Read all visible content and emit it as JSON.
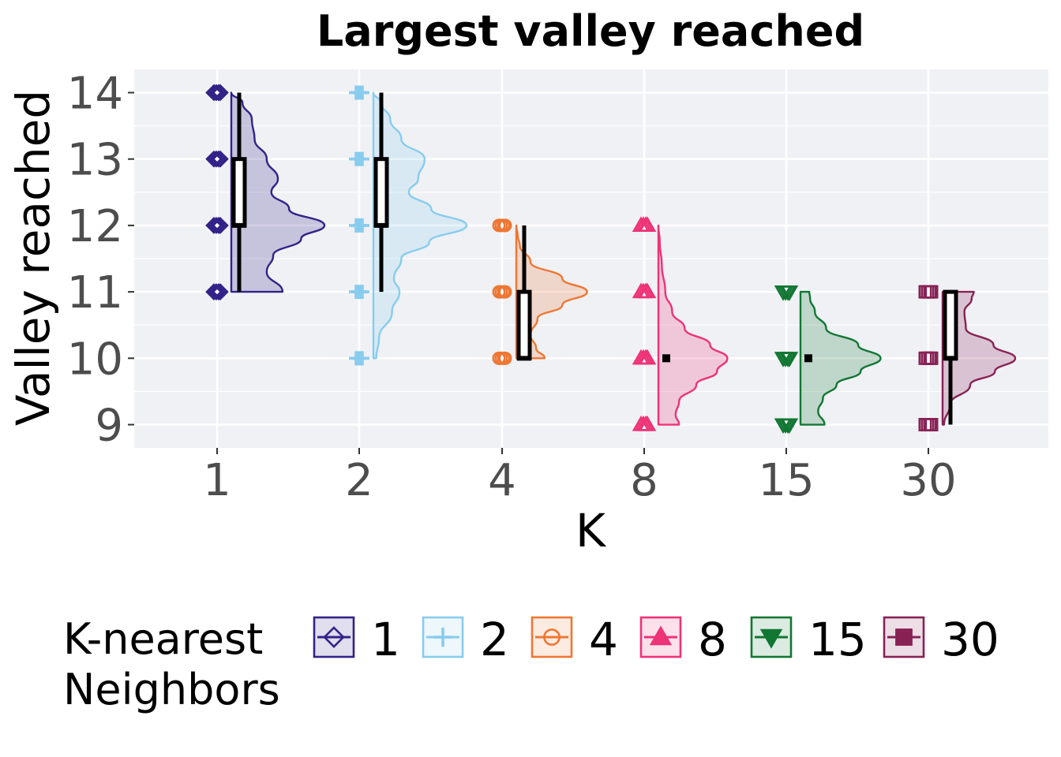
{
  "chart_data": {
    "type": "raincloud",
    "title": "Largest valley reached",
    "xlabel": "K",
    "ylabel": "Valley reached",
    "ylim": [
      8.65,
      14.35
    ],
    "yticks": [
      9,
      10,
      11,
      12,
      13,
      14
    ],
    "grid": true,
    "legend": {
      "title": "K-nearest Neighbors",
      "placement": "bottom"
    },
    "groups": [
      {
        "label": "1",
        "color": "#332288",
        "marker": "diamond",
        "points": [
          11,
          12,
          13,
          14
        ],
        "box": {
          "min": 11,
          "q1": 12,
          "median": 12,
          "q3": 13,
          "max": 14
        },
        "density": [
          [
            11,
            0.55
          ],
          [
            11.3,
            0.38
          ],
          [
            11.55,
            0.45
          ],
          [
            11.8,
            0.75
          ],
          [
            12,
            1.0
          ],
          [
            12.25,
            0.62
          ],
          [
            12.5,
            0.43
          ],
          [
            12.7,
            0.5
          ],
          [
            13,
            0.38
          ],
          [
            13.3,
            0.25
          ],
          [
            13.6,
            0.22
          ],
          [
            13.85,
            0.12
          ],
          [
            14,
            0.0
          ]
        ],
        "density_scale": 1.0
      },
      {
        "label": "2",
        "color": "#88CCEE",
        "marker": "plus",
        "points": [
          10,
          11,
          12,
          13,
          14
        ],
        "box": {
          "min": 11,
          "q1": 12,
          "median": 12,
          "q3": 13,
          "max": 14
        },
        "density": [
          [
            10,
            0.03
          ],
          [
            10.3,
            0.06
          ],
          [
            10.7,
            0.2
          ],
          [
            11,
            0.28
          ],
          [
            11.2,
            0.22
          ],
          [
            11.5,
            0.3
          ],
          [
            11.75,
            0.6
          ],
          [
            12,
            1.0
          ],
          [
            12.25,
            0.62
          ],
          [
            12.5,
            0.38
          ],
          [
            12.7,
            0.48
          ],
          [
            13,
            0.55
          ],
          [
            13.3,
            0.3
          ],
          [
            13.6,
            0.18
          ],
          [
            13.85,
            0.08
          ],
          [
            14,
            0.0
          ]
        ],
        "density_scale": 1.0
      },
      {
        "label": "4",
        "color": "#EE7733",
        "marker": "circle",
        "points": [
          10,
          11,
          12
        ],
        "box": {
          "min": 10,
          "q1": 10,
          "median": 10,
          "q3": 11,
          "max": 12
        },
        "density": [
          [
            10,
            0.4
          ],
          [
            10.15,
            0.28
          ],
          [
            10.35,
            0.2
          ],
          [
            10.6,
            0.3
          ],
          [
            10.8,
            0.65
          ],
          [
            11,
            1.0
          ],
          [
            11.2,
            0.65
          ],
          [
            11.45,
            0.2
          ],
          [
            11.7,
            0.05
          ],
          [
            11.85,
            0.02
          ],
          [
            12,
            0.0
          ]
        ],
        "density_scale": 0.76
      },
      {
        "label": "8",
        "color": "#EE3377",
        "marker": "triangle-up",
        "points": [
          9,
          10,
          11,
          12
        ],
        "box": {
          "min": 10,
          "q1": 10,
          "median": 10,
          "q3": 10,
          "max": 10
        },
        "density": [
          [
            9,
            0.3
          ],
          [
            9.15,
            0.25
          ],
          [
            9.35,
            0.3
          ],
          [
            9.6,
            0.55
          ],
          [
            9.8,
            0.85
          ],
          [
            10,
            1.0
          ],
          [
            10.2,
            0.75
          ],
          [
            10.45,
            0.38
          ],
          [
            10.7,
            0.2
          ],
          [
            11,
            0.1
          ],
          [
            11.4,
            0.05
          ],
          [
            11.75,
            0.02
          ],
          [
            12,
            0.0
          ]
        ],
        "density_scale": 0.74
      },
      {
        "label": "15",
        "color": "#117733",
        "marker": "triangle-down",
        "points": [
          9,
          10,
          11
        ],
        "box": {
          "min": 10,
          "q1": 10,
          "median": 10,
          "q3": 10,
          "max": 10
        },
        "density": [
          [
            9,
            0.3
          ],
          [
            9.2,
            0.22
          ],
          [
            9.4,
            0.28
          ],
          [
            9.6,
            0.45
          ],
          [
            9.8,
            0.75
          ],
          [
            10,
            1.0
          ],
          [
            10.2,
            0.72
          ],
          [
            10.45,
            0.32
          ],
          [
            10.7,
            0.18
          ],
          [
            10.9,
            0.12
          ],
          [
            11,
            0.11
          ]
        ],
        "density_scale": 0.86
      },
      {
        "label": "30",
        "color": "#882255",
        "marker": "square",
        "points": [
          9,
          10,
          11
        ],
        "box": {
          "min": 9,
          "q1": 10,
          "median": 10,
          "q3": 11,
          "max": 11
        },
        "density": [
          [
            9,
            0.02
          ],
          [
            9.3,
            0.1
          ],
          [
            9.6,
            0.38
          ],
          [
            9.8,
            0.72
          ],
          [
            10,
            1.0
          ],
          [
            10.2,
            0.7
          ],
          [
            10.45,
            0.32
          ],
          [
            10.7,
            0.3
          ],
          [
            10.9,
            0.4
          ],
          [
            11,
            0.43
          ]
        ],
        "density_scale": 0.78
      }
    ]
  }
}
